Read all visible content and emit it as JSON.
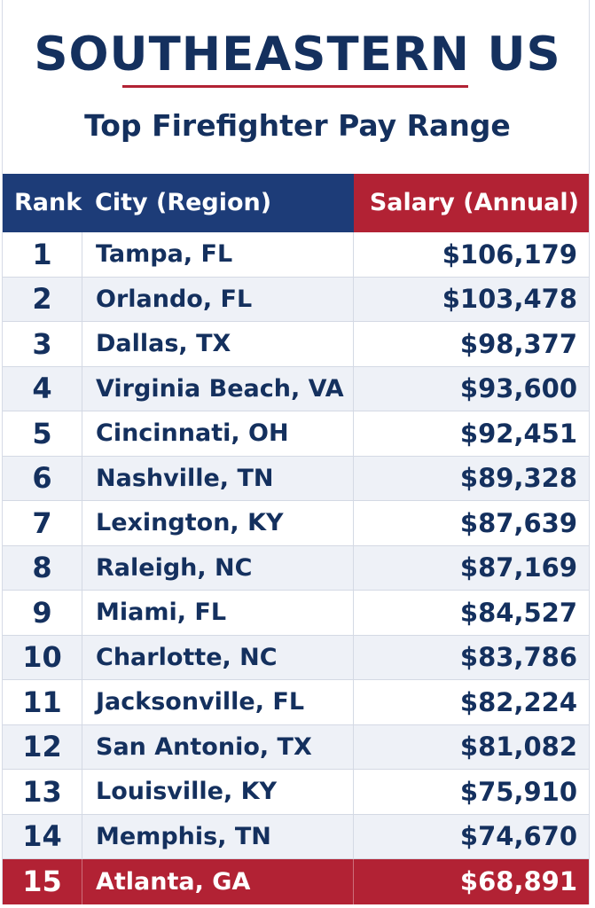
{
  "header": {
    "title": "SOUTHEASTERN US",
    "subtitle": "Top Firefighter Pay Range"
  },
  "colors": {
    "navy": "#14305e",
    "header_blue": "#1d3c78",
    "accent_red": "#b22234",
    "stripe": "#eef1f7"
  },
  "chart_data": {
    "type": "table",
    "title": "SOUTHEASTERN US",
    "subtitle": "Top Firefighter Pay Range",
    "columns": [
      "Rank",
      "City (Region)",
      "Salary (Annual)"
    ],
    "rows": [
      {
        "rank": "1",
        "city": "Tampa, FL",
        "salary": "$106,179"
      },
      {
        "rank": "2",
        "city": "Orlando, FL",
        "salary": "$103,478"
      },
      {
        "rank": "3",
        "city": "Dallas, TX",
        "salary": "$98,377"
      },
      {
        "rank": "4",
        "city": "Virginia Beach, VA",
        "salary": "$93,600"
      },
      {
        "rank": "5",
        "city": "Cincinnati, OH",
        "salary": "$92,451"
      },
      {
        "rank": "6",
        "city": "Nashville, TN",
        "salary": "$89,328"
      },
      {
        "rank": "7",
        "city": "Lexington, KY",
        "salary": "$87,639"
      },
      {
        "rank": "8",
        "city": "Raleigh, NC",
        "salary": "$87,169"
      },
      {
        "rank": "9",
        "city": "Miami, FL",
        "salary": "$84,527"
      },
      {
        "rank": "10",
        "city": "Charlotte, NC",
        "salary": "$83,786"
      },
      {
        "rank": "11",
        "city": "Jacksonville, FL",
        "salary": "$82,224"
      },
      {
        "rank": "12",
        "city": "San Antonio, TX",
        "salary": "$81,082"
      },
      {
        "rank": "13",
        "city": "Louisville, KY",
        "salary": "$75,910"
      },
      {
        "rank": "14",
        "city": "Memphis, TN",
        "salary": "$74,670"
      },
      {
        "rank": "15",
        "city": "Atlanta, GA",
        "salary": "$68,891"
      }
    ],
    "highlighted_rank": "15"
  }
}
